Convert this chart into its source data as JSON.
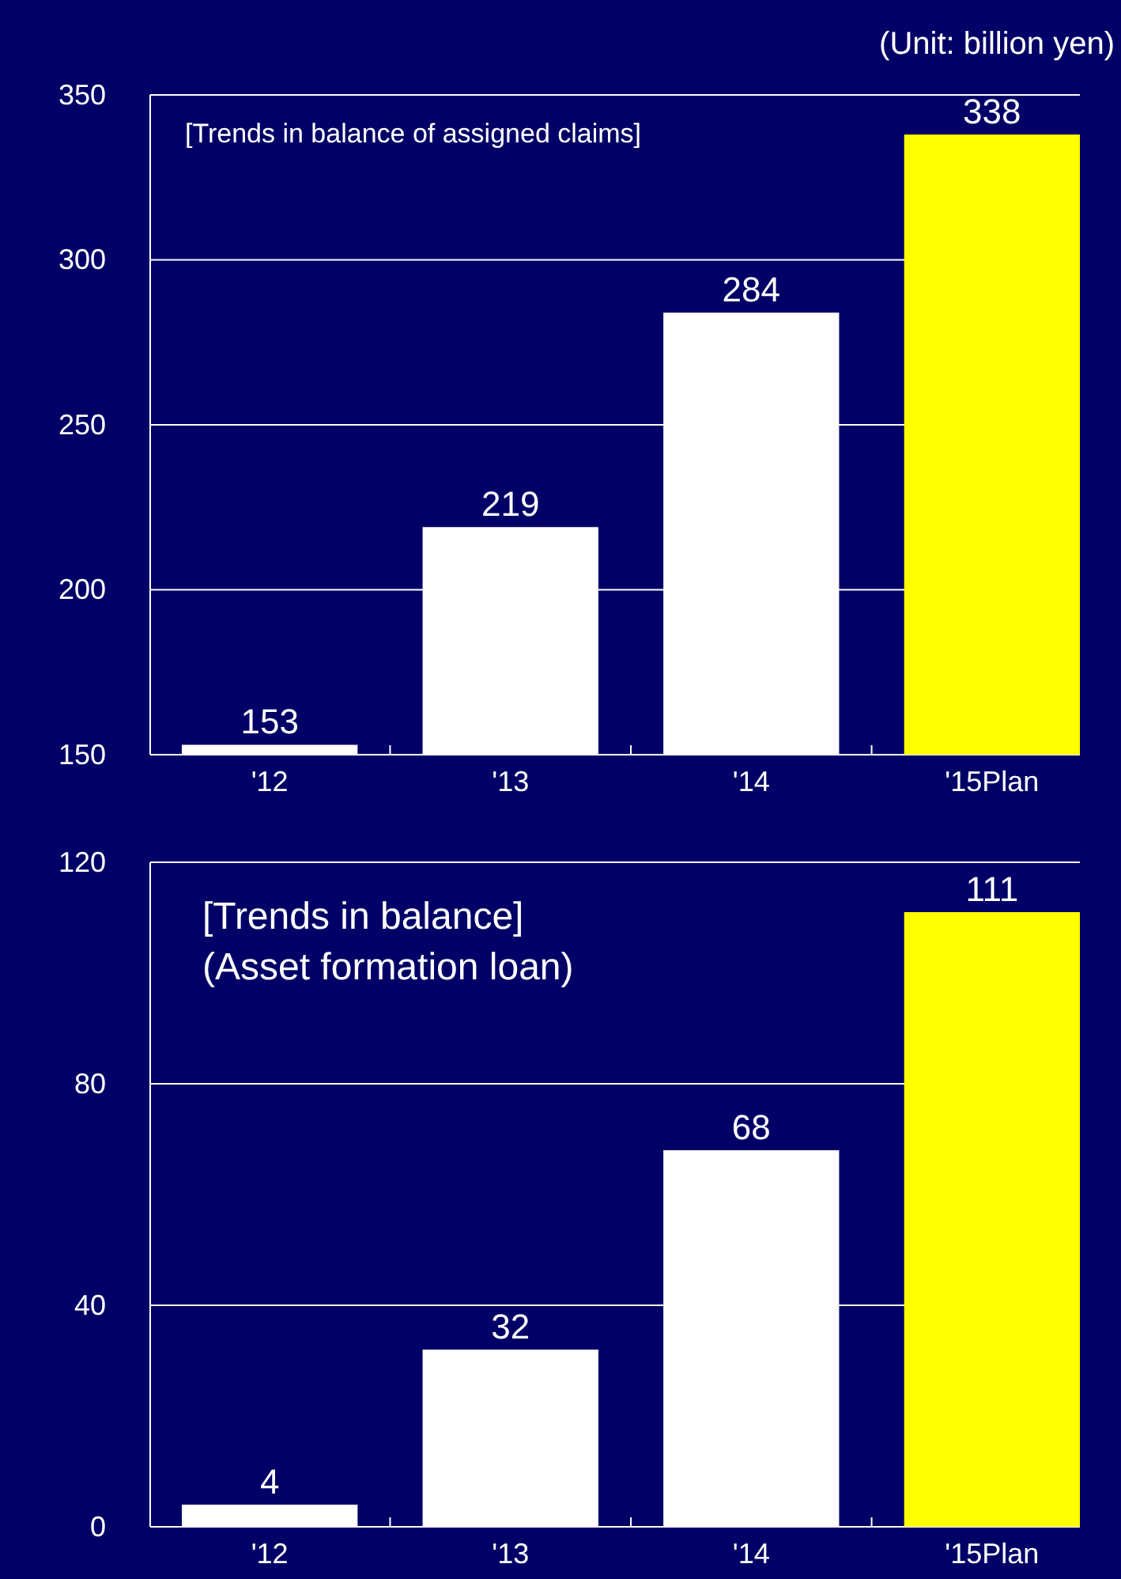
{
  "chart_data": [
    {
      "type": "bar",
      "title": "[Trends in balance of assigned claims]",
      "annotations": [
        "(Unit: billion yen)"
      ],
      "categories": [
        "'12",
        "'13",
        "'14",
        "'15Plan"
      ],
      "values": [
        153,
        219,
        284,
        338
      ],
      "colors": [
        "#ffffff",
        "#ffffff",
        "#ffffff",
        "#ffff00"
      ],
      "ylim": [
        150,
        350
      ],
      "yticks": [
        150,
        200,
        250,
        300,
        350
      ],
      "grid": "y",
      "data_labels": true
    },
    {
      "type": "bar",
      "title": "[Trends in balance]",
      "subtitle": "(Asset formation loan)",
      "categories": [
        "'12",
        "'13",
        "'14",
        "'15Plan"
      ],
      "values": [
        4,
        32,
        68,
        111
      ],
      "colors": [
        "#ffffff",
        "#ffffff",
        "#ffffff",
        "#ffff00"
      ],
      "ylim": [
        0,
        120
      ],
      "yticks": [
        0,
        40,
        80,
        120
      ],
      "grid": "y",
      "data_labels": true
    }
  ]
}
